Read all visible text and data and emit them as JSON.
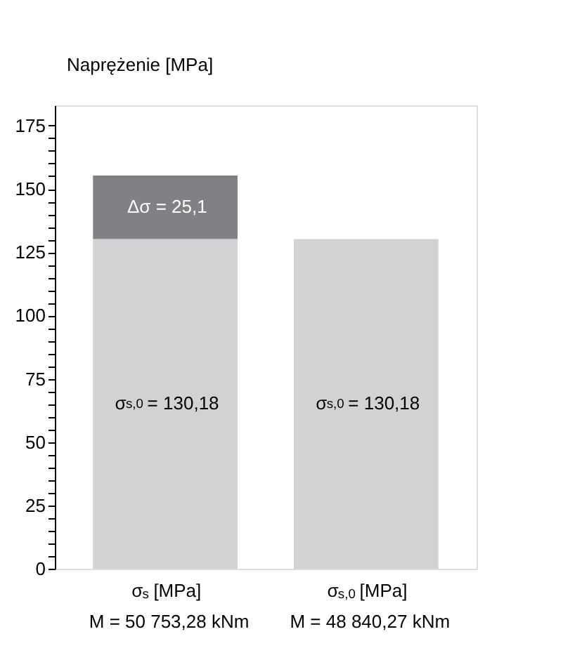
{
  "chart_data": {
    "type": "bar",
    "stacked": true,
    "ylabel": "Naprężenie [MPa]",
    "categories": [
      "σ$_{s}$ [MPa]\nM = 50 753,28 kNm",
      "σ$_{s,0}$ [MPa]\nM = 48 840,27 kNm"
    ],
    "series": [
      {
        "color": "#d1d2d4",
        "values": [
          130.18,
          130.18
        ],
        "value_labels": [
          "σ$_{s,0}$ = 130,18",
          "σ$_{s,0}$ = 130,18"
        ]
      },
      {
        "color": "#808184",
        "values": [
          25.1,
          null
        ],
        "value_labels": [
          "Δσ = 25,1",
          null
        ]
      }
    ],
    "ylim": [
      0,
      183
    ],
    "yticks": [
      0,
      {
        "value": 5,
        "label": null
      },
      {
        "value": 10,
        "label": null
      },
      {
        "value": 15,
        "label": null
      },
      {
        "value": 20,
        "label": null
      },
      25,
      {
        "value": 30,
        "label": null
      },
      {
        "value": 35,
        "label": null
      },
      {
        "value": 40,
        "label": null
      },
      {
        "value": 45,
        "label": null
      },
      50,
      {
        "value": 55,
        "label": null
      },
      {
        "value": 60,
        "label": null
      },
      {
        "value": 65,
        "label": null
      },
      {
        "value": 70,
        "label": null
      },
      75,
      {
        "value": 80,
        "label": null
      },
      {
        "value": 85,
        "label": null
      },
      {
        "value": 90,
        "label": null
      },
      {
        "value": 95,
        "label": null
      },
      100,
      {
        "value": 105,
        "label": null
      },
      {
        "value": 110,
        "label": null
      },
      {
        "value": 115,
        "label": null
      },
      {
        "value": 120,
        "label": null
      },
      125,
      {
        "value": 130,
        "label": null
      },
      {
        "value": 135,
        "label": null
      },
      {
        "value": 140,
        "label": null
      },
      {
        "value": 145,
        "label": null
      },
      150,
      {
        "value": 155,
        "label": null
      },
      {
        "value": 160,
        "label": null
      },
      {
        "value": 165,
        "label": null
      },
      {
        "value": 170,
        "label": null
      },
      175
    ],
    "grid": false
  }
}
